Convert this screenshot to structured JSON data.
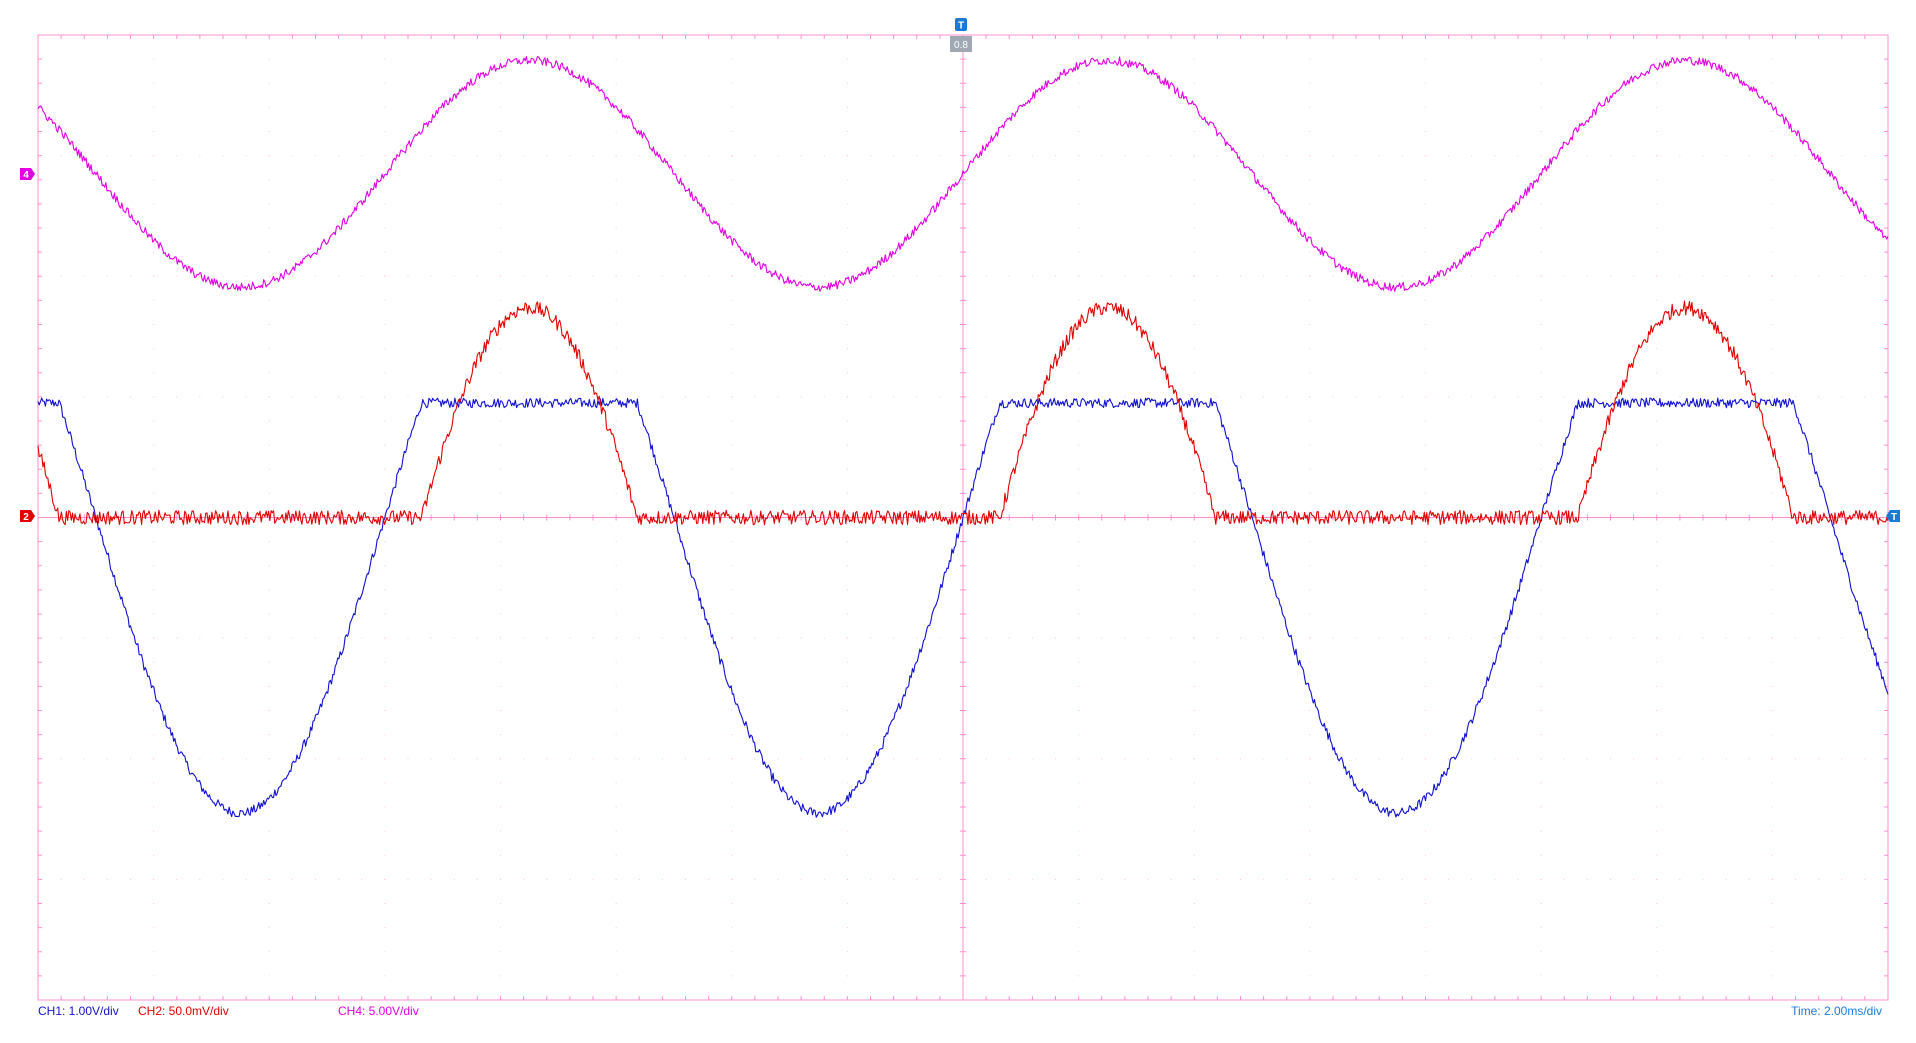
{
  "markers": {
    "trigger_top": "T",
    "delay_readout": "0.8",
    "ch4_marker": "4",
    "ch2_marker": "2",
    "trigger_level_marker": "T"
  },
  "status_bar": {
    "ch1": "CH1: 1.00V/div",
    "ch2": "CH2: 50.0mV/div",
    "ch4": "CH4: 5.00V/div",
    "timebase": "Time: 2.00ms/div"
  },
  "colors": {
    "grid": "#ff8fd0",
    "ch1": "#1010d0",
    "ch2": "#e00000",
    "ch4": "#e000e0",
    "trigger": "#1a7ad8"
  },
  "chart_data": {
    "type": "line",
    "grid": {
      "h_divisions": 16,
      "v_divisions": 8,
      "center_cross": true
    },
    "xlim": [
      -16,
      16
    ],
    "x_unit": "ms",
    "series": [
      {
        "name": "CH1: 1.00V/div",
        "color": "#1010d0",
        "scale_per_div": 1.0,
        "unit": "V",
        "offset_div": 0,
        "shape": "clipped_sine",
        "amplitude_V": 2.45,
        "clip_high_V": 0.95,
        "period_ms": 10,
        "phase_zero_cross_rising_ms": 0,
        "points": [
          [
            -16,
            0.9
          ],
          [
            -15,
            -0.3
          ],
          [
            -14,
            -1.6
          ],
          [
            -13,
            -2.35
          ],
          [
            -12,
            -2.3
          ],
          [
            -11,
            -1.5
          ],
          [
            -10,
            0.0
          ],
          [
            -9,
            0.92
          ],
          [
            -8,
            0.95
          ],
          [
            -7,
            0.9
          ],
          [
            -6,
            0.2
          ],
          [
            -5,
            -0.2
          ],
          [
            -4,
            -1.95
          ],
          [
            -3,
            -2.4
          ],
          [
            -2,
            -2.2
          ],
          [
            -1,
            -1.4
          ],
          [
            0,
            0.0
          ],
          [
            1,
            0.9
          ],
          [
            2,
            0.95
          ],
          [
            3,
            0.9
          ],
          [
            4,
            0.4
          ],
          [
            5,
            -0.1
          ],
          [
            6,
            -1.9
          ],
          [
            7,
            -2.4
          ],
          [
            8,
            -2.2
          ],
          [
            9,
            -1.2
          ],
          [
            10,
            0.0
          ],
          [
            11,
            0.9
          ],
          [
            12,
            0.95
          ],
          [
            13,
            0.9
          ],
          [
            14,
            0.4
          ],
          [
            15,
            -0.2
          ],
          [
            16,
            -1.3
          ]
        ]
      },
      {
        "name": "CH2: 50.0mV/div",
        "color": "#e00000",
        "scale_per_div": 50.0,
        "unit": "mV",
        "offset_div": 0,
        "shape": "half_wave_hump",
        "peak_mV": 87,
        "threshold_fraction": 0.39,
        "period_ms": 10,
        "points": [
          [
            -16,
            40
          ],
          [
            -15,
            0
          ],
          [
            -12,
            0
          ],
          [
            -10,
            0
          ],
          [
            -9,
            18
          ],
          [
            -8,
            68
          ],
          [
            -7,
            86
          ],
          [
            -6,
            70
          ],
          [
            -5,
            22
          ],
          [
            -4.6,
            0
          ],
          [
            0,
            0
          ],
          [
            1,
            35
          ],
          [
            2,
            75
          ],
          [
            2.5,
            87
          ],
          [
            3,
            84
          ],
          [
            4,
            55
          ],
          [
            5,
            10
          ],
          [
            5.4,
            0
          ],
          [
            10,
            0
          ],
          [
            10.4,
            5
          ],
          [
            11,
            45
          ],
          [
            12,
            80
          ],
          [
            12.5,
            87
          ],
          [
            13,
            80
          ],
          [
            14,
            30
          ],
          [
            15,
            0
          ],
          [
            16,
            0
          ]
        ]
      },
      {
        "name": "CH4: 5.00V/div",
        "color": "#e000e0",
        "scale_per_div": 5.0,
        "unit": "V",
        "offset_div": 2.85,
        "shape": "sine",
        "amplitude_V": 4.7,
        "period_ms": 10,
        "phase_zero_cross_rising_ms": 0,
        "points": [
          [
            -16,
            1.5
          ],
          [
            -15,
            -1.8
          ],
          [
            -14,
            -4.3
          ],
          [
            -13,
            -4.6
          ],
          [
            -12,
            -2.8
          ],
          [
            -11,
            0.3
          ],
          [
            -10,
            2.9
          ],
          [
            -9,
            4.4
          ],
          [
            -8,
            4.7
          ],
          [
            -7,
            2.8
          ],
          [
            -6,
            -0.6
          ],
          [
            -5,
            -3.0
          ],
          [
            -4,
            -4.4
          ],
          [
            -3,
            -4.6
          ],
          [
            -2,
            -3.5
          ],
          [
            -1,
            -1.6
          ],
          [
            0,
            0.0
          ],
          [
            1,
            2.5
          ],
          [
            2,
            4.5
          ],
          [
            3,
            4.7
          ],
          [
            4,
            3.0
          ],
          [
            5,
            0.0
          ],
          [
            6,
            -3.0
          ],
          [
            7,
            -4.6
          ],
          [
            8,
            -4.3
          ],
          [
            9,
            -2.7
          ],
          [
            10,
            0.0
          ],
          [
            11,
            2.6
          ],
          [
            12,
            4.4
          ],
          [
            13,
            4.7
          ],
          [
            14,
            3.0
          ],
          [
            15,
            0.5
          ],
          [
            16,
            -1.0
          ]
        ]
      }
    ]
  }
}
